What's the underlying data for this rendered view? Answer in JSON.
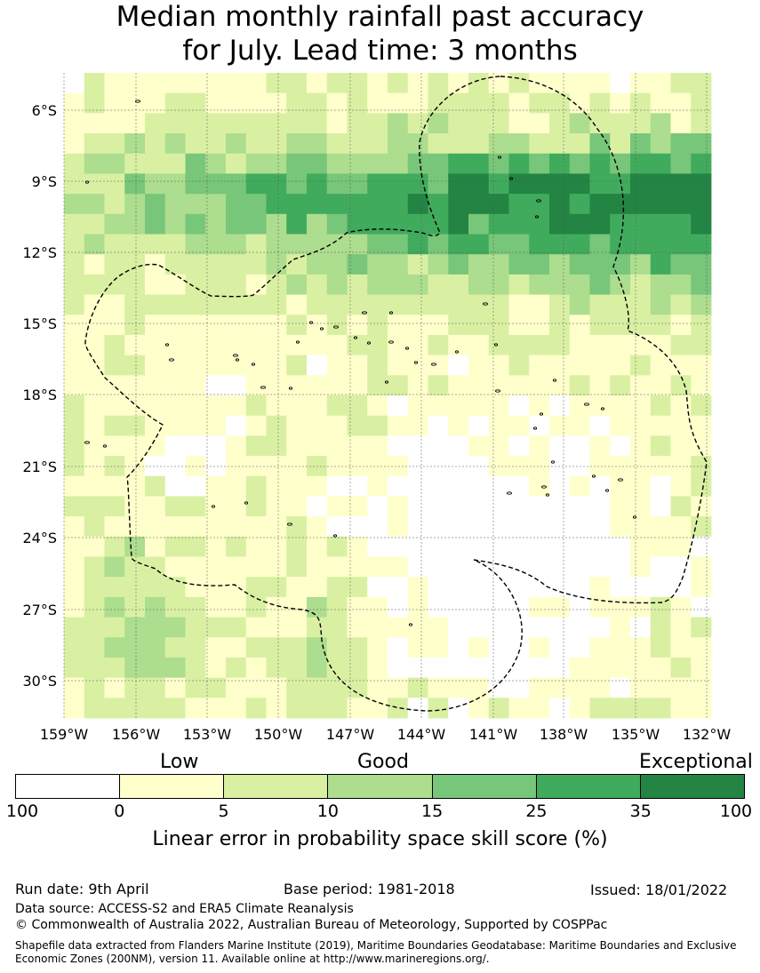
{
  "title": {
    "line1": "Median monthly rainfall past accuracy",
    "line2": "for July. Lead time: 3 months"
  },
  "map": {
    "lat_labels": [
      "6°S",
      "9°S",
      "12°S",
      "15°S",
      "18°S",
      "21°S",
      "24°S",
      "27°S",
      "30°S"
    ],
    "lon_labels": [
      "159°W",
      "156°W",
      "153°W",
      "150°W",
      "147°W",
      "144°W",
      "141°W",
      "138°W",
      "135°W",
      "132°W"
    ],
    "lat_range": [
      -32,
      -4
    ],
    "lon_range": [
      -160,
      -131
    ]
  },
  "legend": {
    "levels": [
      "Low",
      "Good",
      "Exceptional"
    ],
    "ticks": [
      "100",
      "0",
      "5",
      "10",
      "15",
      "25",
      "35",
      "100"
    ],
    "colors": [
      "#ffffff",
      "#ffffcc",
      "#d9f0a3",
      "#addd8e",
      "#78c679",
      "#41ab5d",
      "#238443"
    ],
    "label": "Linear error in probability space skill score (%)"
  },
  "footer": {
    "run_date": "Run date: 9th April",
    "base_period": "Base period: 1981-2018",
    "issued": "Issued: 18/01/2022",
    "data_source": "Data source: ACCESS-S2 and ERA5 Climate Reanalysis",
    "copyright": "© Commonwealth of Australia 2022, Australian Bureau of Meteorology, Supported by COSPPac",
    "shapefile": "Shapefile data extracted from Flanders Marine Institute (2019), Maritime Boundaries Geodatabase: Maritime Boundaries and Exclusive Economic Zones (200NM), version 11. Available online at http://www.marineregions.org/."
  }
}
